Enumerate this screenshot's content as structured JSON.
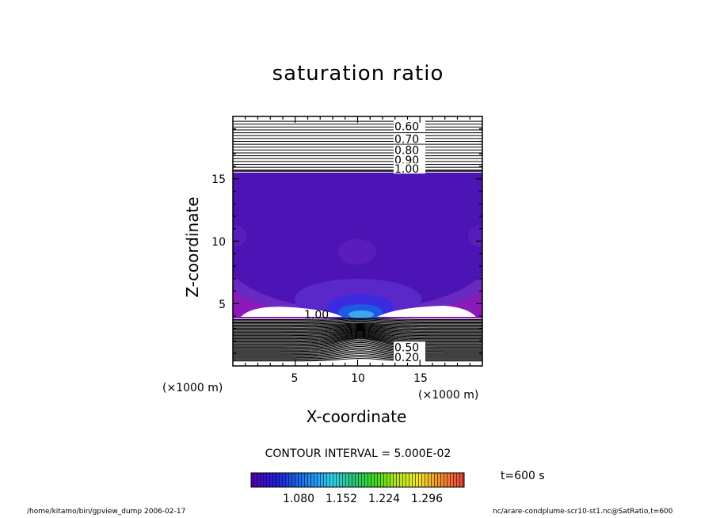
{
  "chart_data": {
    "type": "heatmap",
    "title": "saturation ratio",
    "xlabel": "X-coordinate",
    "ylabel": "Z-coordinate",
    "x_unit_left": "(×1000 m)",
    "x_unit_right": "(×1000 m)",
    "xlim": [
      0,
      20
    ],
    "ylim": [
      0,
      20
    ],
    "x_ticks": [
      "5",
      "10",
      "15"
    ],
    "y_ticks": [
      "5",
      "10",
      "15"
    ],
    "contour_interval": "CONTOUR INTERVAL = 5.000E-02",
    "time_label": "t=600 s",
    "colorbar_ticks": [
      "1.080",
      "1.152",
      "1.224",
      "1.296"
    ],
    "colorbar_range": [
      1.0,
      1.35
    ],
    "upper_contour_labels": [
      {
        "text": "0.60",
        "z": 19.2
      },
      {
        "text": "0.70",
        "z": 18.2
      },
      {
        "text": "0.80",
        "z": 17.3
      },
      {
        "text": "0.90",
        "z": 16.5
      },
      {
        "text": "1.00",
        "z": 15.8
      }
    ],
    "lower_contour_labels": [
      {
        "text": "0.50",
        "z": 1.5
      },
      {
        "text": "0.20",
        "z": 0.7
      }
    ],
    "inline_label": "1.00",
    "saturated_layer_z": [
      3.8,
      15.5
    ],
    "colors": {
      "base": "#4c14b4",
      "purple": "#6a2ac2",
      "magenta": "#8c1ab8",
      "blue": "#1e3cdc",
      "cyan": "#3ea6ef"
    }
  },
  "footer": {
    "left": "/home/kitamo/bin/gpview_dump  2006-02-17",
    "right": "nc/arare-condplume-scr10-st1.nc@SatRatio,t=600"
  }
}
